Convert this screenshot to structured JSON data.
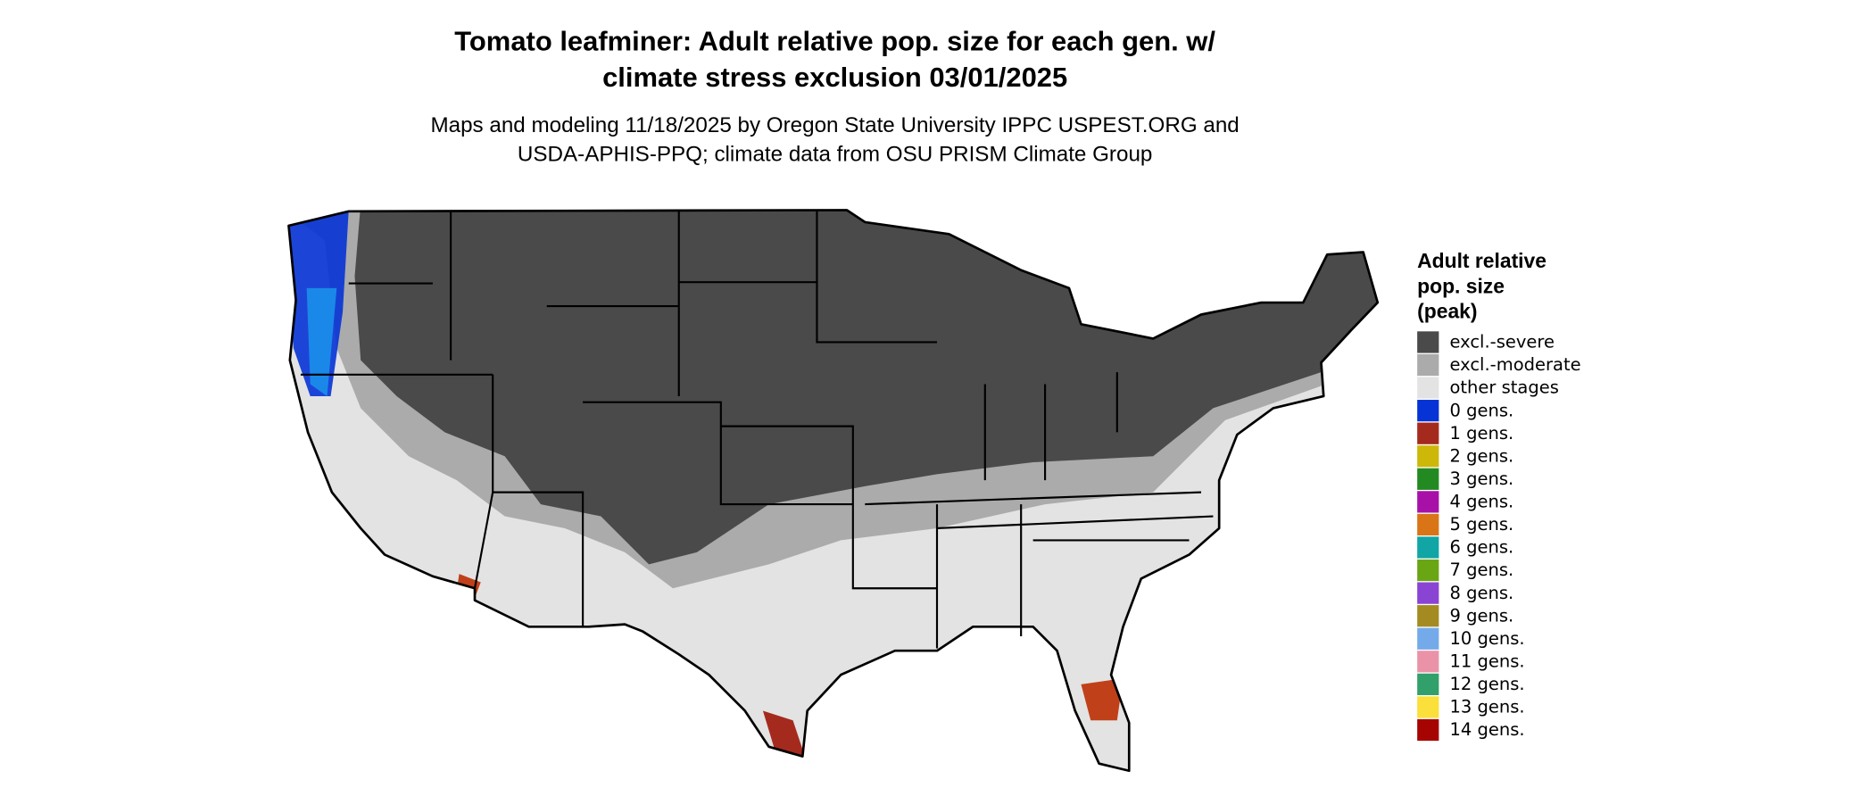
{
  "map": {
    "title": [
      "Tomato leafminer: Adult relative pop. size for each gen. w/",
      "climate stress exclusion 03/01/2025"
    ],
    "subtitle": [
      "Maps and modeling 11/18/2025 by Oregon State University IPPC USPEST.ORG and",
      "USDA-APHIS-PPQ; climate data from OSU PRISM Climate Group"
    ],
    "legend": {
      "title": [
        "Adult relative",
        "pop. size",
        "(peak)"
      ],
      "items": [
        {
          "label": "excl.-severe",
          "color": "#4a4a4a"
        },
        {
          "label": "excl.-moderate",
          "color": "#ababab"
        },
        {
          "label": "other stages",
          "color": "#e3e3e3"
        },
        {
          "label": "0 gens.",
          "color": "#0533d6"
        },
        {
          "label": "1 gens.",
          "color": "#a52a1e"
        },
        {
          "label": "2 gens.",
          "color": "#cdb80a"
        },
        {
          "label": "3 gens.",
          "color": "#238a22"
        },
        {
          "label": "4 gens.",
          "color": "#a811a8"
        },
        {
          "label": "5 gens.",
          "color": "#d97517"
        },
        {
          "label": "6 gens.",
          "color": "#12a5a5"
        },
        {
          "label": "7 gens.",
          "color": "#6aa514"
        },
        {
          "label": "8 gens.",
          "color": "#8a44d4"
        },
        {
          "label": "9 gens.",
          "color": "#a38b22"
        },
        {
          "label": "10 gens.",
          "color": "#74aaea"
        },
        {
          "label": "11 gens.",
          "color": "#ea93a8"
        },
        {
          "label": "12 gens.",
          "color": "#32a06a"
        },
        {
          "label": "13 gens.",
          "color": "#fbdf3a"
        },
        {
          "label": "14 gens.",
          "color": "#a60303"
        }
      ]
    }
  }
}
